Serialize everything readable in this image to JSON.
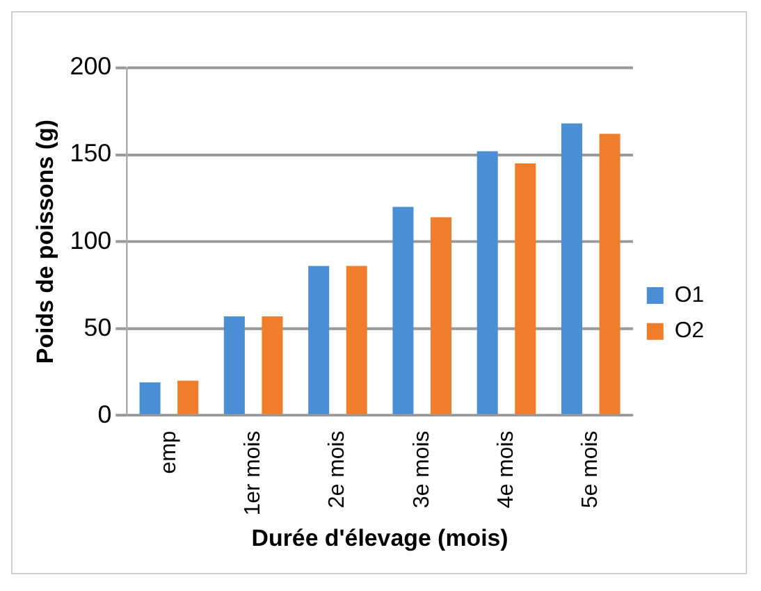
{
  "chart_data": {
    "type": "bar",
    "xlabel": "Durée d'élevage (mois)",
    "ylabel": "Poids de poissons (g)",
    "categories": [
      "emp",
      "1er mois",
      "2e mois",
      "3e mois",
      "4e mois",
      "5e mois"
    ],
    "series": [
      {
        "name": "O1",
        "color": "#4a8fd6",
        "values": [
          19,
          57,
          86,
          120,
          152,
          168
        ]
      },
      {
        "name": "O2",
        "color": "#f07d2b",
        "values": [
          20,
          57,
          86,
          114,
          145,
          162
        ]
      }
    ],
    "ylim": [
      0,
      200
    ],
    "yticks": [
      0,
      50,
      100,
      150,
      200
    ],
    "grid": "y",
    "legend": "right"
  }
}
